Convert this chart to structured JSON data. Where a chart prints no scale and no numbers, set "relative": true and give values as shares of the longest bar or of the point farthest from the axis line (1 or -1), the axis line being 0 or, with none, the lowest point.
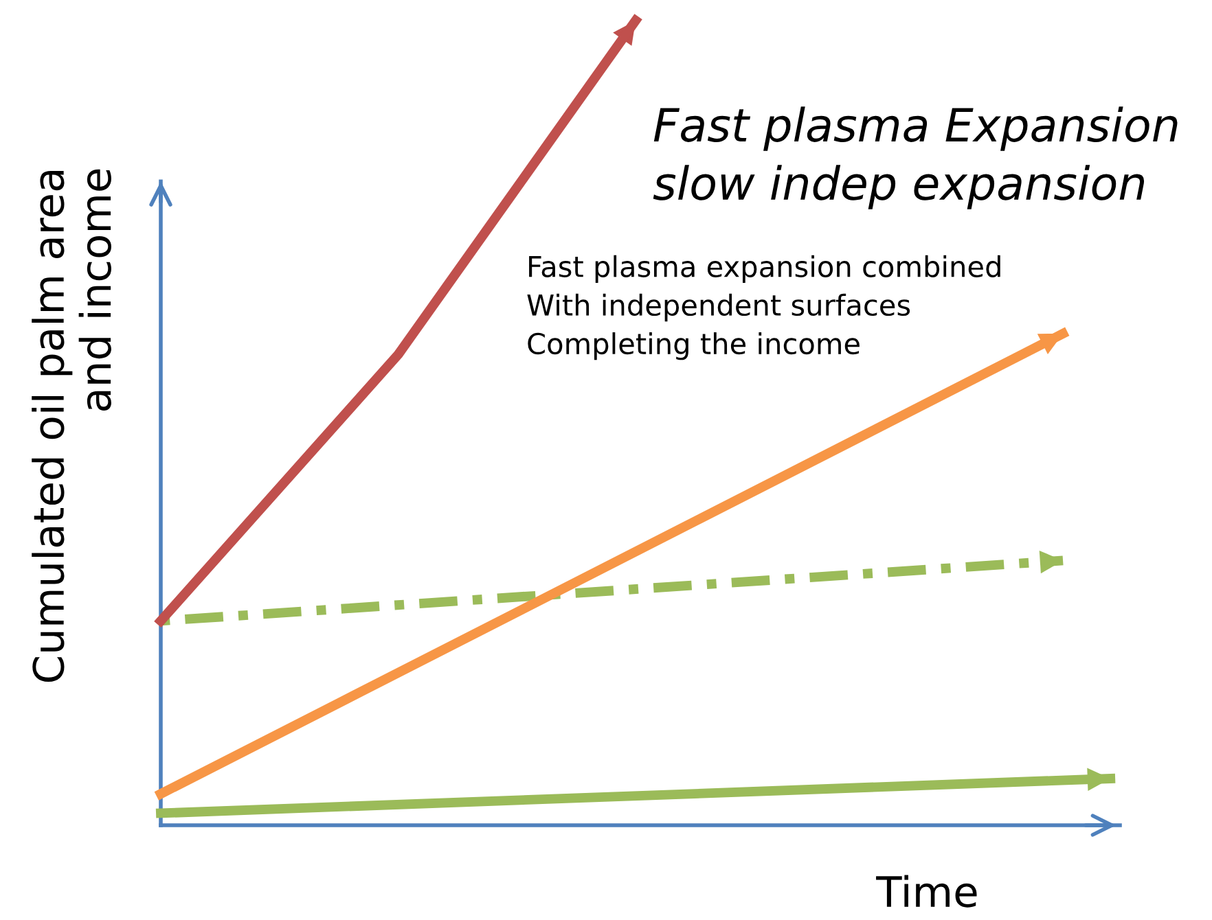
{
  "chart_data": {
    "type": "line",
    "relative": true,
    "title": "Fast plasma Expansion\nslow indep expansion",
    "xlabel": "Time",
    "ylabel": "Cumulated oil palm area\nand income",
    "annotations": [
      "Fast plasma expansion combined\nWith independent surfaces\nCompleting the income"
    ],
    "categories": [
      null,
      null,
      null,
      null,
      null,
      null,
      null,
      null,
      null,
      null,
      null,
      null,
      null,
      null,
      null,
      null,
      null,
      null,
      null,
      null,
      null
    ],
    "series": [
      {
        "color": "#c0504d",
        "values": [
          0.254,
          null,
          null,
          null,
          null,
          0.585,
          null,
          null,
          null,
          null,
          1.0,
          null,
          null,
          null,
          null,
          null,
          null,
          null,
          null,
          null,
          null
        ],
        "line_style": "solid"
      },
      {
        "color": "#f79646",
        "values": [
          0.039,
          null,
          null,
          null,
          null,
          null,
          null,
          null,
          null,
          null,
          null,
          null,
          null,
          null,
          null,
          null,
          null,
          null,
          null,
          0.611,
          null
        ],
        "line_style": "solid"
      },
      {
        "color": "#9bbb59",
        "values": [
          0.254,
          null,
          null,
          null,
          null,
          null,
          null,
          null,
          null,
          null,
          null,
          null,
          null,
          null,
          null,
          null,
          null,
          null,
          null,
          0.329,
          null
        ],
        "line_style": "dashdot"
      },
      {
        "color": "#9bbb59",
        "values": [
          0.015,
          null,
          null,
          null,
          null,
          null,
          null,
          null,
          null,
          null,
          null,
          null,
          null,
          null,
          null,
          null,
          null,
          null,
          null,
          null,
          0.058
        ],
        "line_style": "solid"
      }
    ]
  }
}
